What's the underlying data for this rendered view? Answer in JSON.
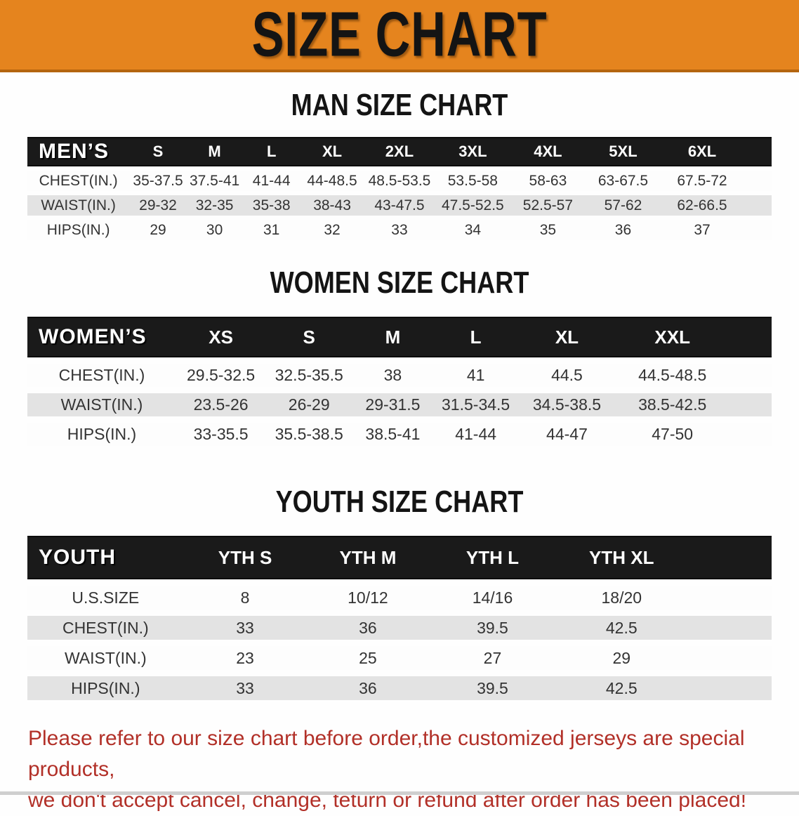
{
  "banner": {
    "title": "SIZE CHART"
  },
  "sections": [
    {
      "heading": "MAN SIZE CHART",
      "table": {
        "header_label": "MEN’S",
        "columns": [
          "S",
          "M",
          "L",
          "XL",
          "2XL",
          "3XL",
          "4XL",
          "5XL",
          "6XL"
        ],
        "rows": [
          {
            "label": "CHEST(IN.)",
            "values": [
              "35-37.5",
              "37.5-41",
              "41-44",
              "44-48.5",
              "48.5-53.5",
              "53.5-58",
              "58-63",
              "63-67.5",
              "67.5-72"
            ]
          },
          {
            "label": "WAIST(IN.)",
            "values": [
              "29-32",
              "32-35",
              "35-38",
              "38-43",
              "43-47.5",
              "47.5-52.5",
              "52.5-57",
              "57-62",
              "62-66.5"
            ]
          },
          {
            "label": "HIPS(IN.)",
            "values": [
              "29",
              "30",
              "31",
              "32",
              "33",
              "34",
              "35",
              "36",
              "37"
            ]
          }
        ]
      }
    },
    {
      "heading": "WOMEN SIZE CHART",
      "table": {
        "header_label": "WOMEN’S",
        "columns": [
          "XS",
          "S",
          "M",
          "L",
          "XL",
          "XXL"
        ],
        "rows": [
          {
            "label": "CHEST(IN.)",
            "values": [
              "29.5-32.5",
              "32.5-35.5",
              "38",
              "41",
              "44.5",
              "44.5-48.5"
            ]
          },
          {
            "label": "WAIST(IN.)",
            "values": [
              "23.5-26",
              "26-29",
              "29-31.5",
              "31.5-34.5",
              "34.5-38.5",
              "38.5-42.5"
            ]
          },
          {
            "label": "HIPS(IN.)",
            "values": [
              "33-35.5",
              "35.5-38.5",
              "38.5-41",
              "41-44",
              "44-47",
              "47-50"
            ]
          }
        ]
      }
    },
    {
      "heading": "YOUTH SIZE CHART",
      "table": {
        "header_label": "YOUTH",
        "columns": [
          "YTH S",
          "YTH M",
          "YTH L",
          "YTH XL"
        ],
        "rows": [
          {
            "label": "U.S.SIZE",
            "values": [
              "8",
              "10/12",
              "14/16",
              "18/20"
            ]
          },
          {
            "label": "CHEST(IN.)",
            "values": [
              "33",
              "36",
              "39.5",
              "42.5"
            ]
          },
          {
            "label": "WAIST(IN.)",
            "values": [
              "23",
              "25",
              "27",
              "29"
            ]
          },
          {
            "label": "HIPS(IN.)",
            "values": [
              "33",
              "36",
              "39.5",
              "42.5"
            ]
          }
        ]
      }
    }
  ],
  "disclaimer": {
    "line1": "Please refer to our size chart before order,the customized jerseys are special products,",
    "line2": "we don't accept cancel, change, teturn or refund after order has been placed!"
  },
  "colors": {
    "banner-bg": "#e5841e",
    "banner-edge": "#b4650f",
    "band-bg": "#1a1a1a",
    "row-gray": "#e3e3e3",
    "row-white": "#fdfdfd",
    "red": "#b23028",
    "ink": "#141414"
  }
}
